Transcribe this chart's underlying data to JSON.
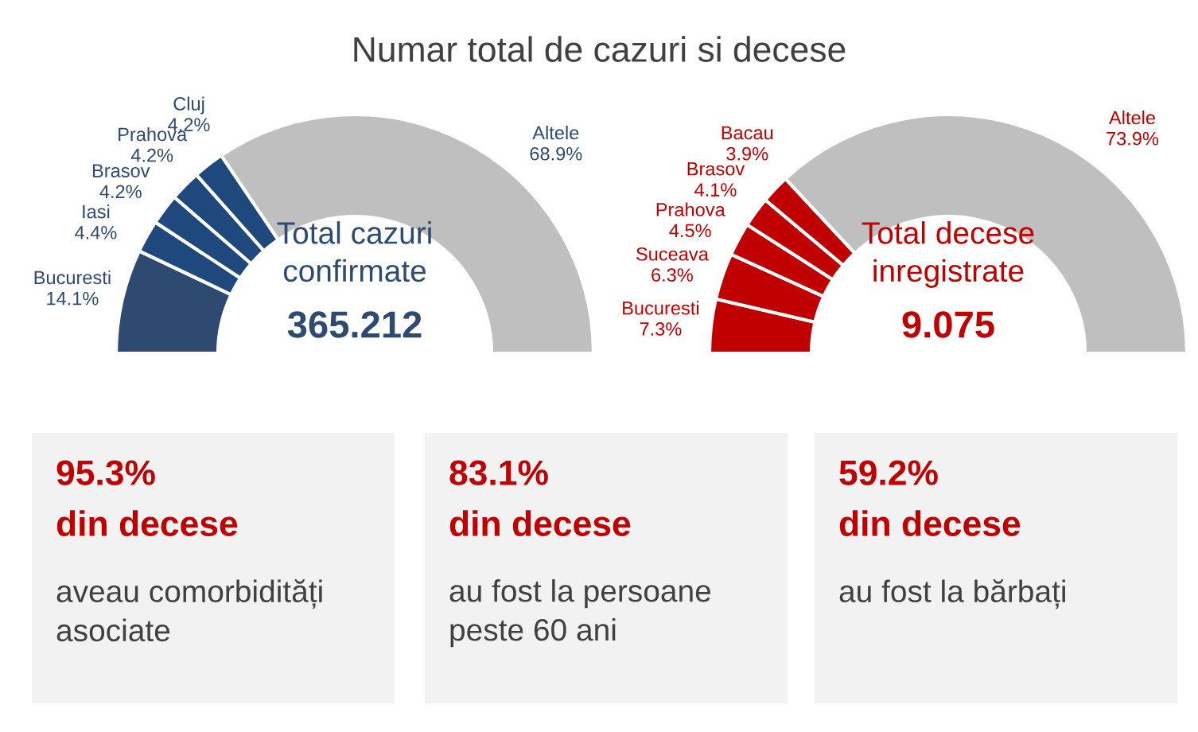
{
  "chart_data": [
    {
      "type": "donut",
      "title": "Numar total de cazuri si decese",
      "categories": [
        "Bucuresti",
        "Iasi",
        "Brasov",
        "Prahova",
        "Cluj",
        "Altele"
      ],
      "values": [
        14.1,
        4.4,
        4.2,
        4.2,
        4.2,
        68.9
      ],
      "value_labels": [
        "14.1%",
        "4.4%",
        "4.2%",
        "4.2%",
        "4.2%",
        "68.9%"
      ],
      "colors": [
        "#2e4a70",
        "#1f497d",
        "#1f497d",
        "#1f497d",
        "#1f497d",
        "#bfbfbf"
      ],
      "annotations": [
        "Total cazuri\nconfirmate",
        "365.212"
      ]
    },
    {
      "type": "donut",
      "categories": [
        "Bucuresti",
        "Suceava",
        "Prahova",
        "Brasov",
        "Bacau",
        "Altele"
      ],
      "values": [
        7.3,
        6.3,
        4.5,
        4.1,
        3.9,
        73.9
      ],
      "value_labels": [
        "7.3%",
        "6.3%",
        "4.5%",
        "4.1%",
        "3.9%",
        "73.9%"
      ],
      "colors": [
        "#c00000",
        "#c00000",
        "#c00000",
        "#c00000",
        "#c00000",
        "#bfbfbf"
      ],
      "annotations": [
        "Total decese\ninregistrate",
        "9.075"
      ]
    },
    {
      "type": "other",
      "title": "95.3%",
      "subtitle": "din decese",
      "annotations": [
        "aveau comorbidități\nasociate"
      ]
    },
    {
      "type": "other",
      "title": "83.1%",
      "subtitle": "din decese",
      "annotations": [
        "au fost la persoane\npeste 60 ani"
      ]
    },
    {
      "type": "other",
      "title": "59.2%",
      "subtitle": "din decese",
      "annotations": [
        "au fost la bărbați"
      ]
    }
  ]
}
